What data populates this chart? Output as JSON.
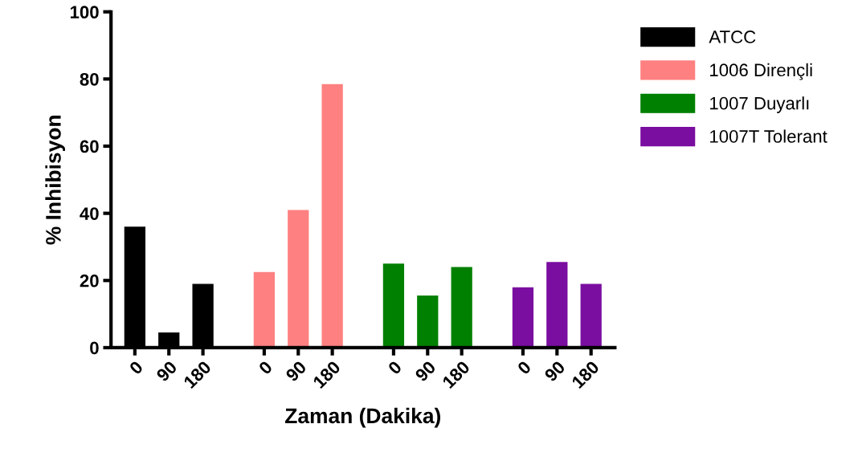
{
  "chart_data": {
    "type": "bar",
    "xlabel": "Zaman (Dakika)",
    "ylabel": "% Inhibisyon",
    "categories": [
      "0",
      "90",
      "180",
      "0",
      "90",
      "180",
      "0",
      "90",
      "180",
      "0",
      "90",
      "180"
    ],
    "series": [
      {
        "name": "ATCC",
        "color": "#000000",
        "values": [
          36,
          4.5,
          19,
          null,
          null,
          null,
          null,
          null,
          null,
          null,
          null,
          null
        ]
      },
      {
        "name": "1006 Dirençli",
        "color": "#ff8080",
        "values": [
          null,
          null,
          null,
          22.5,
          41,
          78.5,
          null,
          null,
          null,
          null,
          null,
          null
        ]
      },
      {
        "name": "1007 Duyarlı",
        "color": "#008000",
        "values": [
          null,
          null,
          null,
          null,
          null,
          null,
          25,
          15.5,
          24,
          null,
          null,
          null
        ]
      },
      {
        "name": "1007T Tolerant",
        "color": "#7a0ea0",
        "values": [
          null,
          null,
          null,
          null,
          null,
          null,
          null,
          null,
          null,
          18,
          25.5,
          19
        ]
      }
    ],
    "ylim": [
      0,
      100
    ],
    "yticks": [
      0,
      20,
      40,
      60,
      80,
      100
    ],
    "grid": false,
    "legend": "top right"
  }
}
